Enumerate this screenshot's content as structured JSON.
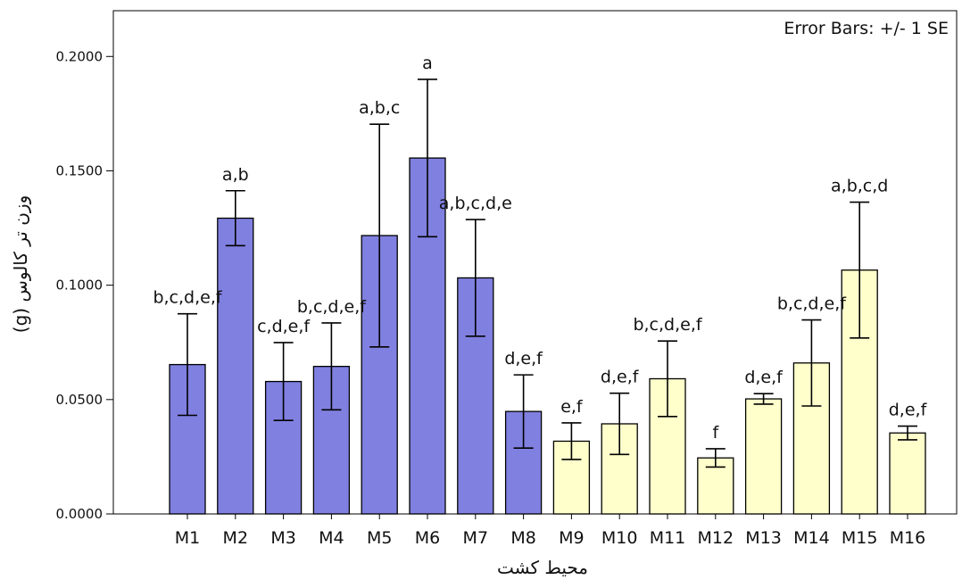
{
  "chart_data": {
    "type": "bar",
    "xlabel": "محیط کشت",
    "ylabel": "وزن تر کالوس (g)",
    "annotation": "Error Bars: +/- 1 SE",
    "ylim": [
      0,
      0.22
    ],
    "yticks": [
      "0.0000",
      "0.0500",
      "0.1000",
      "0.1500",
      "0.2000"
    ],
    "ytick_values": [
      0,
      0.05,
      0.1,
      0.15,
      0.2
    ],
    "categories": [
      "M1",
      "M2",
      "M3",
      "M4",
      "M5",
      "M6",
      "M7",
      "M8",
      "M9",
      "M10",
      "M11",
      "M12",
      "M13",
      "M14",
      "M15",
      "M16"
    ],
    "values": [
      0.0653,
      0.1293,
      0.0579,
      0.0645,
      0.1217,
      0.1556,
      0.1032,
      0.0448,
      0.0318,
      0.0394,
      0.0591,
      0.0245,
      0.0503,
      0.066,
      0.1066,
      0.0354
    ],
    "se": [
      0.0222,
      0.012,
      0.017,
      0.019,
      0.0487,
      0.0344,
      0.0255,
      0.016,
      0.008,
      0.0134,
      0.0165,
      0.004,
      0.0023,
      0.0188,
      0.0297,
      0.003
    ],
    "group_labels": [
      "b,c,d,e,f",
      "a,b",
      "c,d,e,f",
      "b,c,d,e,f",
      "a,b,c",
      "a",
      "a,b,c,d,e",
      "d,e,f",
      "e,f",
      "d,e,f",
      "b,c,d,e,f",
      "f",
      "d,e,f",
      "b,c,d,e,f",
      "a,b,c,d",
      "d,e,f"
    ],
    "bar_colors": [
      "#8080e0",
      "#8080e0",
      "#8080e0",
      "#8080e0",
      "#8080e0",
      "#8080e0",
      "#8080e0",
      "#8080e0",
      "#ffffcc",
      "#ffffcc",
      "#ffffcc",
      "#ffffcc",
      "#ffffcc",
      "#ffffcc",
      "#ffffcc",
      "#ffffcc"
    ],
    "grid": false
  }
}
